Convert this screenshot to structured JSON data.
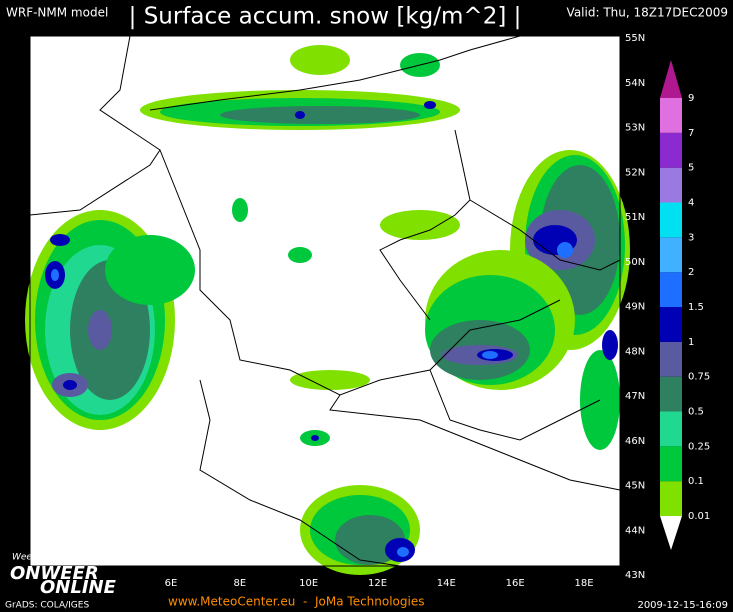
{
  "header": {
    "model": "WRF-NMM model",
    "title": "| Surface accum. snow [kg/m^2] |",
    "valid": "Valid: Thu, 18Z17DEC2009"
  },
  "latitude_labels": [
    {
      "value": 55,
      "label": "55N"
    },
    {
      "value": 54,
      "label": "54N"
    },
    {
      "value": 53,
      "label": "53N"
    },
    {
      "value": 52,
      "label": "52N"
    },
    {
      "value": 51,
      "label": "51N"
    },
    {
      "value": 50,
      "label": "50N"
    },
    {
      "value": 49,
      "label": "49N"
    },
    {
      "value": 48,
      "label": "48N"
    },
    {
      "value": 47,
      "label": "47N"
    },
    {
      "value": 46,
      "label": "46N"
    },
    {
      "value": 45,
      "label": "45N"
    },
    {
      "value": 44,
      "label": "44N"
    },
    {
      "value": 43,
      "label": "43N"
    }
  ],
  "longitude_labels": [
    {
      "value": 6,
      "label": "6E"
    },
    {
      "value": 8,
      "label": "8E"
    },
    {
      "value": 10,
      "label": "10E"
    },
    {
      "value": 12,
      "label": "12E"
    },
    {
      "value": 14,
      "label": "14E"
    },
    {
      "value": 16,
      "label": "16E"
    },
    {
      "value": 18,
      "label": "18E"
    }
  ],
  "legend": {
    "levels": [
      {
        "label": "0.01",
        "color": "#80e000"
      },
      {
        "label": "0.1",
        "color": "#00c83c"
      },
      {
        "label": "0.25",
        "color": "#20d890"
      },
      {
        "label": "0.5",
        "color": "#2f8060"
      },
      {
        "label": "0.75",
        "color": "#5a5aa0"
      },
      {
        "label": "1",
        "color": "#0000b4"
      },
      {
        "label": "1.5",
        "color": "#1e6eff"
      },
      {
        "label": "2",
        "color": "#40b0ff"
      },
      {
        "label": "3",
        "color": "#00e0f0"
      },
      {
        "label": "4",
        "color": "#9a7ae0"
      },
      {
        "label": "5",
        "color": "#8a2ad0"
      },
      {
        "label": "7",
        "color": "#e070e0"
      },
      {
        "label": "9",
        "color": "#b01890"
      }
    ]
  },
  "logo": {
    "slogan": "Weer of geen weer, altijd actueel!",
    "line1": "ONWEER",
    "line2": "ONLINE"
  },
  "footer": {
    "software": "GrADS: COLA/IGES",
    "credits": "www.MeteoCenter.eu  -  JoMa Technologies",
    "timestamp": "2009-12-15-16:09"
  }
}
